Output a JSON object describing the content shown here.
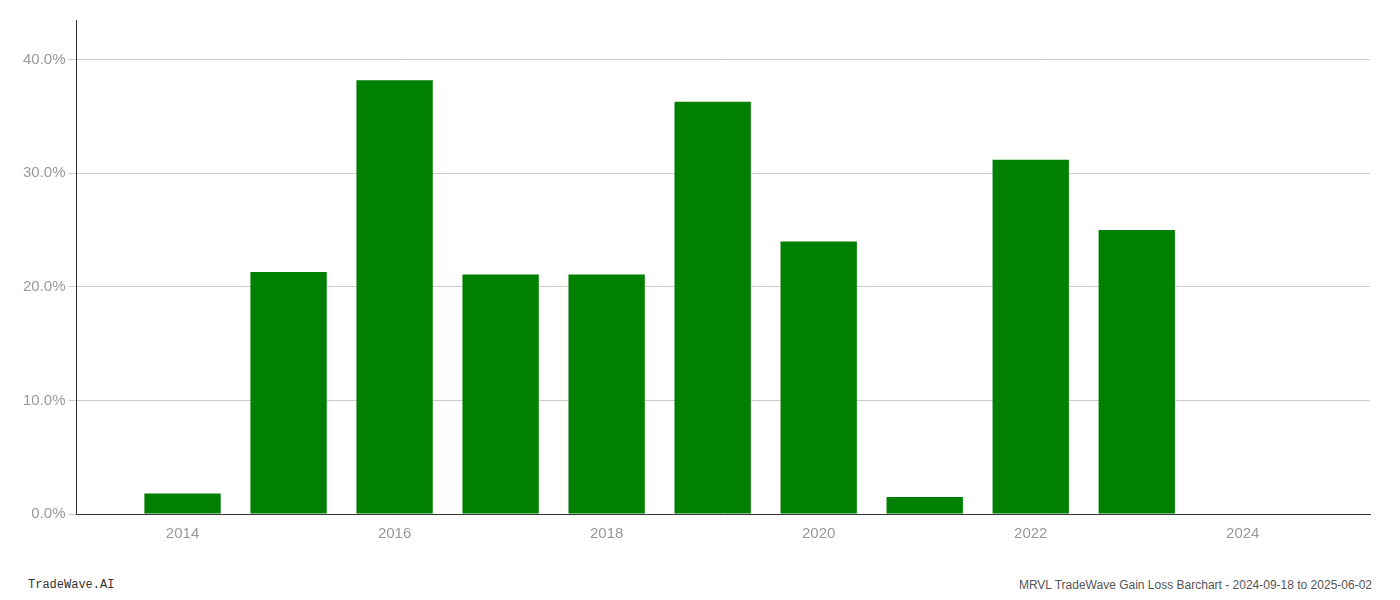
{
  "chart_data": {
    "type": "bar",
    "x": [
      2014,
      2015,
      2016,
      2017,
      2018,
      2019,
      2020,
      2021,
      2022,
      2023,
      2024
    ],
    "values": [
      0.018,
      0.213,
      0.382,
      0.211,
      0.211,
      0.363,
      0.24,
      0.015,
      0.312,
      0.25,
      0.0
    ],
    "color": "#008000",
    "xlim": [
      2013.0,
      2025.2
    ],
    "xticks": [
      2014,
      2016,
      2018,
      2020,
      2022,
      2024
    ],
    "ylim": [
      0,
      0.435
    ],
    "yticks": [
      {
        "value": 0.0,
        "label": "0.0%"
      },
      {
        "value": 0.1,
        "label": "10.0%"
      },
      {
        "value": 0.2,
        "label": "20.0%"
      },
      {
        "value": 0.3,
        "label": "30.0%"
      },
      {
        "value": 0.4,
        "label": "40.0%"
      }
    ],
    "grid": true,
    "annotations": [
      "TradeWave.AI",
      "MRVL TradeWave Gain Loss Barchart - 2024-09-18 to 2025-06-02"
    ]
  }
}
